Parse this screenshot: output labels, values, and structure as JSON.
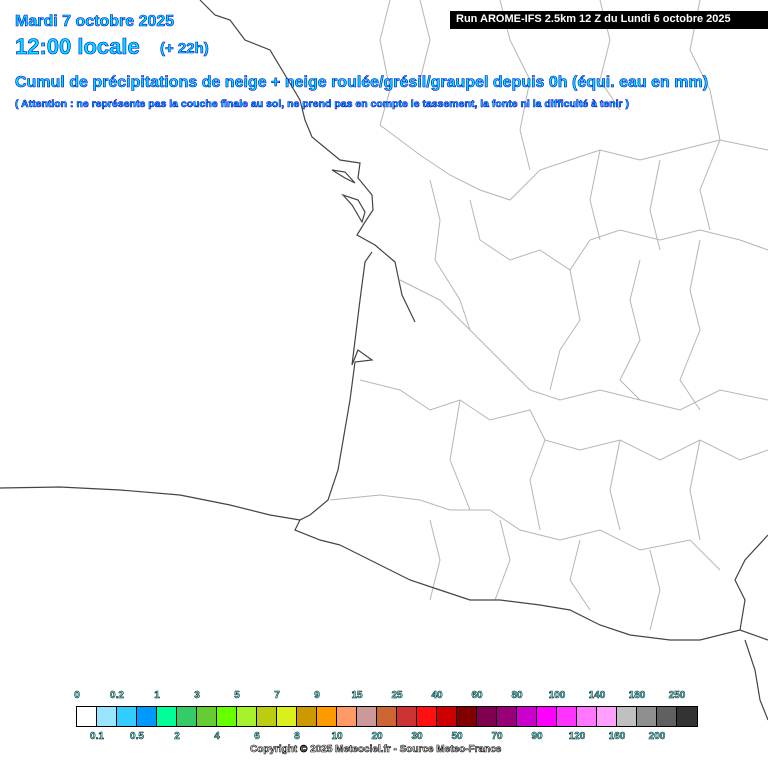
{
  "header": {
    "date": "Mardi 7 octobre 2025",
    "time": "12:00 locale",
    "lead": "(+ 22h)",
    "run": "Run AROME-IFS 2.5km 12 Z du Lundi 6 octobre 2025",
    "title": "Cumul de précipitations de neige + neige roulée/grésil/graupel depuis 0h (équi. eau en mm)",
    "warning": "( Attention : ne représente pas la couche finale au sol, ne prend pas en compte le tassement, la fonte ni la difficulté à tenir )"
  },
  "legend": {
    "colors": [
      "#ffffff",
      "#99e5ff",
      "#33ccff",
      "#0099ff",
      "#00ff99",
      "#33cc66",
      "#66cc33",
      "#66ff00",
      "#a6f22d",
      "#bbcc11",
      "#d9f01a",
      "#cc9900",
      "#ff9900",
      "#ff9966",
      "#cc9999",
      "#cc6633",
      "#cc3333",
      "#ff1111",
      "#cc0000",
      "#800000",
      "#800050",
      "#990077",
      "#cc00cc",
      "#ff00ff",
      "#ff33ff",
      "#ff77ff",
      "#ffa0ff",
      "#c0c0c0",
      "#8f8f8f",
      "#606060",
      "#333333"
    ],
    "top_labels": [
      "0",
      "0.2",
      "1",
      "3",
      "5",
      "7",
      "9",
      "15",
      "25",
      "40",
      "60",
      "80",
      "100",
      "140",
      "180",
      "250"
    ],
    "bottom_labels": [
      "0.1",
      "0.5",
      "2",
      "4",
      "6",
      "8",
      "10",
      "20",
      "30",
      "50",
      "70",
      "90",
      "120",
      "160",
      "200"
    ]
  },
  "copyright": "Copyright © 2025 Meteociel.fr - Source Meteo-France"
}
